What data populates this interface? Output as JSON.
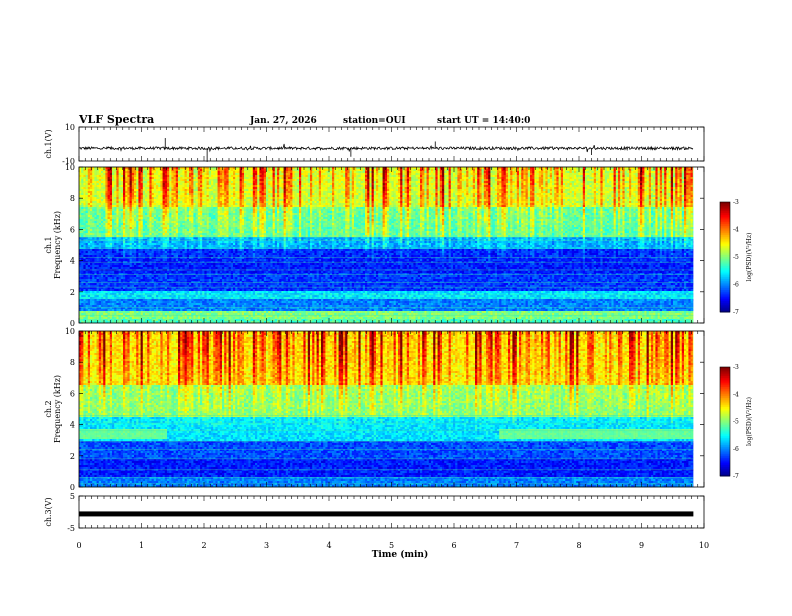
{
  "header": {
    "title": "VLF Spectra",
    "date": "Jan. 27, 2026",
    "station": "station=OUI",
    "start_ut": "start UT =  14:40:0"
  },
  "chart_data": [
    {
      "type": "line",
      "name": "ch1-waveform",
      "ylabel": "ch.1(V)",
      "ylim": [
        -10,
        10
      ],
      "yticks": [
        "10",
        "-10"
      ],
      "xlim": [
        0,
        10
      ],
      "x_data_end": 9.83,
      "baseline": -2.5,
      "noise_amplitude": 0.8
    },
    {
      "type": "heatmap",
      "name": "ch1-spectrogram",
      "ylabel": "ch.1",
      "ylabel2": "Frequency (kHz)",
      "ylim": [
        0,
        10
      ],
      "yticks": [
        "0",
        "2",
        "4",
        "6",
        "8",
        "10"
      ],
      "xlim": [
        0,
        10
      ],
      "x_data_end": 9.83,
      "colorbar": {
        "label": "log(PSD)(V²/Hz)",
        "range": [
          -7,
          -3
        ],
        "ticks": [
          "-3",
          "-4",
          "-5",
          "-6",
          "-7"
        ],
        "colormap": "jet"
      },
      "bands": [
        {
          "freq": [
            0,
            0.3
          ],
          "level": 0.45
        },
        {
          "freq": [
            0.3,
            0.8
          ],
          "level": 0.5
        },
        {
          "freq": [
            0.8,
            1.5
          ],
          "level": 0.25
        },
        {
          "freq": [
            1.5,
            2.0
          ],
          "level": 0.35
        },
        {
          "freq": [
            2.0,
            3.2
          ],
          "level": 0.18
        },
        {
          "freq": [
            3.2,
            4.7
          ],
          "level": 0.15
        },
        {
          "freq": [
            4.7,
            5.5
          ],
          "level": 0.28
        },
        {
          "freq": [
            5.5,
            7.5
          ],
          "level": 0.45
        },
        {
          "freq": [
            7.5,
            10
          ],
          "level": 0.55
        }
      ]
    },
    {
      "type": "heatmap",
      "name": "ch2-spectrogram",
      "ylabel": "ch.2",
      "ylabel2": "Frequency (kHz)",
      "ylim": [
        0,
        10
      ],
      "yticks": [
        "0",
        "2",
        "4",
        "6",
        "8",
        "10"
      ],
      "xlim": [
        0,
        10
      ],
      "x_data_end": 9.83,
      "colorbar": {
        "label": "log(PSD)(V²/Hz)",
        "range": [
          -7,
          -3
        ],
        "ticks": [
          "-3",
          "-4",
          "-5",
          "-6",
          "-7"
        ],
        "colormap": "jet"
      },
      "bands": [
        {
          "freq": [
            0,
            0.6
          ],
          "level": 0.25
        },
        {
          "freq": [
            0.6,
            1.8
          ],
          "level": 0.15
        },
        {
          "freq": [
            1.8,
            3.0
          ],
          "level": 0.2
        },
        {
          "freq": [
            3.0,
            4.5
          ],
          "level": 0.35
        },
        {
          "freq": [
            4.5,
            6.5
          ],
          "level": 0.5
        },
        {
          "freq": [
            6.5,
            10
          ],
          "level": 0.62
        }
      ],
      "emission_lines": [
        {
          "freq": 3.4,
          "t": [
            0,
            1.4
          ],
          "level": 0.45
        },
        {
          "freq": 3.4,
          "t": [
            6.7,
            9.83
          ],
          "level": 0.45
        }
      ]
    },
    {
      "type": "line",
      "name": "ch3-waveform",
      "ylabel": "ch.3(V)",
      "ylim": [
        -5,
        5
      ],
      "yticks": [
        "5",
        "-5"
      ],
      "xlim": [
        0,
        10
      ],
      "x_data_end": 9.83,
      "baseline": -0.6,
      "noise_amplitude": 0.05
    }
  ],
  "xaxis": {
    "label": "Time (min)",
    "ticks": [
      "0",
      "1",
      "2",
      "3",
      "4",
      "5",
      "6",
      "7",
      "8",
      "9",
      "10"
    ]
  }
}
